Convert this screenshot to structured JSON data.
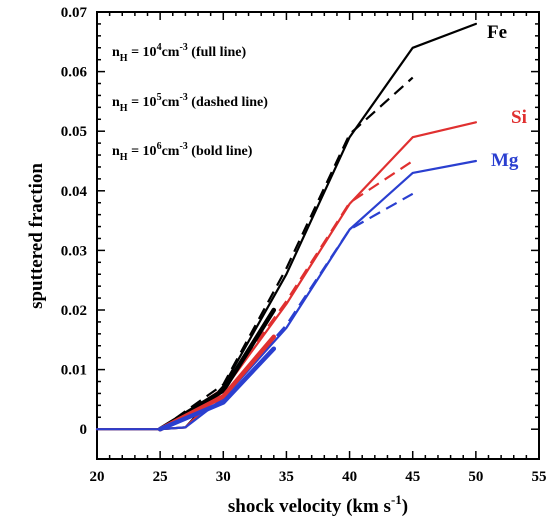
{
  "chart_data": {
    "type": "line",
    "xlabel": "shock velocity  (km s",
    "xlabel_sup": "-1",
    "xlabel_end": ")",
    "ylabel": "sputtered fraction",
    "xlim": [
      20,
      55
    ],
    "ylim": [
      -0.005,
      0.07
    ],
    "x_ticks": [
      20,
      25,
      30,
      35,
      40,
      45,
      50,
      55
    ],
    "y_ticks": [
      0,
      0.01,
      0.02,
      0.03,
      0.04,
      0.05,
      0.06,
      0.07
    ],
    "y_tick_labels": [
      "0",
      "0.01",
      "0.02",
      "0.03",
      "0.04",
      "0.05",
      "0.06",
      "0.07"
    ],
    "grid": false,
    "annotations": [
      {
        "pre": "n",
        "sub": "H",
        "mid": " = 10",
        "sup": "4",
        "post": "cm",
        "sup2": "-3",
        "tail": " (full line)"
      },
      {
        "pre": "n",
        "sub": "H",
        "mid": " = 10",
        "sup": "5",
        "post": "cm",
        "sup2": "-3",
        "tail": " (dashed line)"
      },
      {
        "pre": "n",
        "sub": "H",
        "mid": " = 10",
        "sup": "6",
        "post": "cm",
        "sup2": "-3",
        "tail": " (bold line)"
      }
    ],
    "series": [
      {
        "name": "Fe",
        "color": "#000000",
        "style": "full",
        "x": [
          20,
          25,
          27,
          30,
          35,
          40,
          45,
          50
        ],
        "y": [
          0,
          0,
          0.0003,
          0.0072,
          0.026,
          0.049,
          0.064,
          0.068
        ]
      },
      {
        "name": "Si",
        "color": "#e03030",
        "style": "full",
        "x": [
          20,
          25,
          27,
          30,
          35,
          40,
          45,
          50
        ],
        "y": [
          0,
          0,
          0.0003,
          0.0065,
          0.021,
          0.0378,
          0.049,
          0.0515
        ]
      },
      {
        "name": "Mg",
        "color": "#2a3fd0",
        "style": "full",
        "x": [
          20,
          25,
          27,
          30,
          35,
          40,
          45,
          50
        ],
        "y": [
          0,
          0,
          0.0003,
          0.0052,
          0.017,
          0.0335,
          0.043,
          0.045
        ]
      },
      {
        "name": "",
        "color": "#000000",
        "style": "dashed",
        "x": [
          25,
          30,
          35,
          40,
          45
        ],
        "y": [
          0,
          0.0075,
          0.027,
          0.0495,
          0.059
        ]
      },
      {
        "name": "",
        "color": "#e03030",
        "style": "dashed",
        "x": [
          25,
          30,
          35,
          40,
          45
        ],
        "y": [
          0,
          0.0068,
          0.0215,
          0.038,
          0.045
        ]
      },
      {
        "name": "",
        "color": "#2a3fd0",
        "style": "dashed",
        "x": [
          25,
          30,
          35,
          40,
          45
        ],
        "y": [
          0,
          0.0055,
          0.0175,
          0.0335,
          0.0395
        ]
      },
      {
        "name": "",
        "color": "#000000",
        "style": "bold",
        "x": [
          25,
          30,
          34
        ],
        "y": [
          0,
          0.0065,
          0.02
        ]
      },
      {
        "name": "",
        "color": "#e03030",
        "style": "bold",
        "x": [
          25,
          30,
          34
        ],
        "y": [
          0,
          0.0055,
          0.0155
        ]
      },
      {
        "name": "",
        "color": "#2a3fd0",
        "style": "bold",
        "x": [
          25,
          30,
          34
        ],
        "y": [
          0,
          0.0045,
          0.0135
        ]
      }
    ]
  }
}
